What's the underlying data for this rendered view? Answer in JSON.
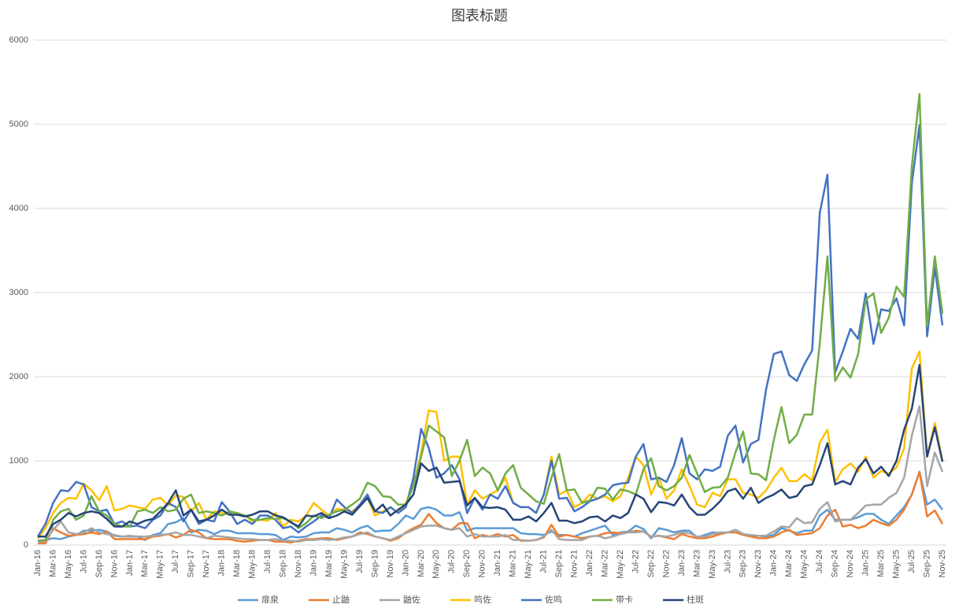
{
  "chart_data": {
    "type": "line",
    "title": "图表标题",
    "categories": [
      "Jan-16",
      null,
      "Mar-16",
      null,
      "May-16",
      null,
      "Jul-16",
      null,
      "Sep-16",
      null,
      "Nov-16",
      null,
      "Jan-17",
      null,
      "Mar-17",
      null,
      "May-17",
      null,
      "Jul-17",
      null,
      "Sep-17",
      null,
      "Nov-17",
      null,
      "Jan-18",
      null,
      "Mar-18",
      null,
      "May-18",
      null,
      "Jul-18",
      null,
      "Sep-18",
      null,
      "Nov-18",
      null,
      "Jan-19",
      null,
      "Mar-19",
      null,
      "May-19",
      null,
      "Jul-19",
      null,
      "Sep-19",
      null,
      "Nov-19",
      null,
      "Jan-20",
      null,
      "Mar-20",
      null,
      "May-20",
      null,
      "Jul-20",
      null,
      "Sep-20",
      null,
      "Nov-20",
      null,
      "Jan-21",
      null,
      "Mar-21",
      null,
      "May-21",
      null,
      "Jul-21",
      null,
      "Sep-21",
      null,
      "Nov-21",
      null,
      "Jan-22",
      null,
      "Mar-22",
      null,
      "May-22",
      null,
      "Jul-22",
      null,
      "Sep-22",
      null,
      "Nov-22",
      null,
      "Jan-23",
      null,
      "Mar-23",
      null,
      "May-23",
      null,
      "Jul-23",
      null,
      "Sep-23",
      null,
      "Nov-23",
      null,
      "Jan-24",
      null,
      "Mar-24",
      null,
      "May-24",
      null,
      "Jul-24",
      null,
      "Sep-24",
      null,
      "Nov-24",
      null,
      "Jan-25",
      null,
      "Mar-25",
      null,
      "May-25",
      null,
      "Jul-25",
      null,
      "Sep-25",
      null,
      "Nov-25"
    ],
    "series": [
      {
        "name": "扉泉",
        "color": "#5b9bd5",
        "values": [
          50,
          60,
          80,
          70,
          100,
          120,
          170,
          170,
          180,
          160,
          110,
          100,
          100,
          100,
          60,
          120,
          140,
          250,
          270,
          320,
          150,
          180,
          170,
          130,
          170,
          170,
          140,
          140,
          140,
          130,
          130,
          120,
          60,
          100,
          90,
          100,
          140,
          150,
          150,
          200,
          180,
          150,
          200,
          230,
          160,
          170,
          170,
          250,
          350,
          310,
          430,
          450,
          420,
          350,
          350,
          390,
          170,
          200,
          200,
          200,
          200,
          200,
          200,
          140,
          130,
          130,
          120,
          160,
          120,
          120,
          100,
          140,
          170,
          200,
          230,
          120,
          150,
          160,
          230,
          190,
          80,
          200,
          180,
          150,
          170,
          170,
          90,
          120,
          150,
          140,
          150,
          180,
          130,
          110,
          110,
          100,
          120,
          200,
          170,
          140,
          170,
          170,
          350,
          420,
          300,
          300,
          300,
          330,
          370,
          370,
          300,
          250,
          350,
          450,
          600,
          870,
          480,
          540,
          420
        ]
      },
      {
        "name": "止鼬",
        "color": "#ed7d31",
        "values": [
          20,
          20,
          200,
          150,
          110,
          120,
          130,
          150,
          130,
          160,
          70,
          70,
          70,
          70,
          70,
          100,
          110,
          130,
          90,
          120,
          180,
          150,
          80,
          70,
          70,
          70,
          50,
          40,
          50,
          60,
          60,
          40,
          40,
          30,
          50,
          70,
          70,
          80,
          80,
          60,
          80,
          100,
          150,
          130,
          100,
          80,
          50,
          80,
          150,
          200,
          240,
          370,
          260,
          200,
          180,
          260,
          260,
          80,
          120,
          100,
          130,
          100,
          120,
          50,
          50,
          60,
          90,
          240,
          100,
          120,
          100,
          80,
          100,
          110,
          140,
          150,
          140,
          150,
          170,
          160,
          100,
          110,
          90,
          70,
          130,
          100,
          80,
          80,
          100,
          130,
          150,
          150,
          120,
          100,
          80,
          80,
          100,
          150,
          180,
          120,
          130,
          140,
          200,
          350,
          420,
          220,
          240,
          200,
          230,
          300,
          260,
          230,
          300,
          420,
          600,
          870,
          340,
          410,
          250
        ]
      },
      {
        "name": "鼬佐",
        "color": "#a5a5a5",
        "values": [
          30,
          50,
          180,
          280,
          150,
          130,
          150,
          200,
          150,
          130,
          120,
          100,
          110,
          100,
          100,
          110,
          120,
          130,
          150,
          120,
          120,
          100,
          80,
          110,
          100,
          90,
          80,
          70,
          70,
          60,
          60,
          70,
          50,
          50,
          40,
          60,
          60,
          70,
          60,
          70,
          90,
          100,
          130,
          150,
          100,
          80,
          60,
          100,
          140,
          180,
          220,
          230,
          230,
          200,
          180,
          200,
          100,
          130,
          100,
          100,
          100,
          120,
          60,
          60,
          50,
          60,
          100,
          180,
          70,
          60,
          60,
          60,
          100,
          110,
          80,
          100,
          130,
          150,
          150,
          160,
          100,
          110,
          100,
          120,
          150,
          140,
          100,
          100,
          130,
          150,
          150,
          180,
          130,
          120,
          110,
          110,
          160,
          220,
          210,
          320,
          260,
          270,
          430,
          510,
          280,
          300,
          300,
          380,
          470,
          480,
          480,
          560,
          620,
          800,
          1300,
          1650,
          700,
          1100,
          870
        ]
      },
      {
        "name": "鸣佐",
        "color": "#ffc000",
        "values": [
          80,
          200,
          380,
          500,
          560,
          550,
          730,
          650,
          530,
          700,
          410,
          430,
          470,
          450,
          430,
          540,
          560,
          470,
          590,
          570,
          400,
          500,
          300,
          400,
          380,
          360,
          380,
          350,
          280,
          300,
          290,
          380,
          220,
          300,
          280,
          350,
          500,
          420,
          350,
          430,
          420,
          400,
          470,
          560,
          350,
          400,
          450,
          380,
          500,
          700,
          1100,
          1600,
          1580,
          1000,
          1050,
          1050,
          480,
          650,
          550,
          600,
          650,
          800,
          500,
          450,
          450,
          380,
          600,
          1050,
          600,
          650,
          450,
          500,
          600,
          550,
          580,
          520,
          580,
          800,
          1050,
          950,
          600,
          800,
          550,
          650,
          900,
          700,
          480,
          450,
          620,
          580,
          780,
          780,
          620,
          600,
          560,
          650,
          800,
          920,
          760,
          760,
          840,
          770,
          1220,
          1370,
          750,
          900,
          970,
          870,
          1050,
          800,
          880,
          850,
          920,
          1150,
          2100,
          2300,
          1050,
          1450,
          1000
        ]
      },
      {
        "name": "佐鸣",
        "color": "#4472c4",
        "values": [
          100,
          250,
          500,
          650,
          640,
          750,
          720,
          450,
          400,
          420,
          250,
          280,
          220,
          230,
          200,
          300,
          350,
          500,
          450,
          280,
          420,
          250,
          300,
          280,
          510,
          400,
          250,
          300,
          250,
          350,
          350,
          300,
          200,
          220,
          150,
          220,
          280,
          350,
          320,
          540,
          450,
          380,
          480,
          600,
          400,
          380,
          450,
          380,
          450,
          800,
          1380,
          1150,
          800,
          850,
          950,
          780,
          380,
          560,
          420,
          600,
          550,
          700,
          500,
          450,
          450,
          380,
          600,
          1000,
          550,
          560,
          400,
          450,
          520,
          550,
          600,
          710,
          730,
          740,
          1050,
          1200,
          780,
          800,
          750,
          950,
          1270,
          850,
          780,
          900,
          880,
          930,
          1300,
          1420,
          980,
          1200,
          1250,
          1850,
          2270,
          2300,
          2020,
          1950,
          2150,
          2310,
          3950,
          4400,
          2050,
          2300,
          2570,
          2450,
          2990,
          2390,
          2800,
          2780,
          2930,
          2610,
          4300,
          4990,
          2480,
          3300,
          2610
        ]
      },
      {
        "name": "带卡",
        "color": "#70ad47",
        "values": [
          50,
          60,
          300,
          400,
          430,
          300,
          350,
          580,
          400,
          350,
          250,
          220,
          220,
          400,
          420,
          380,
          450,
          400,
          420,
          550,
          600,
          380,
          400,
          380,
          350,
          400,
          380,
          350,
          300,
          300,
          320,
          310,
          320,
          280,
          200,
          260,
          350,
          320,
          360,
          400,
          420,
          480,
          550,
          740,
          700,
          580,
          570,
          480,
          480,
          700,
          1050,
          1420,
          1350,
          1280,
          820,
          1000,
          1250,
          820,
          920,
          850,
          650,
          850,
          950,
          680,
          600,
          520,
          490,
          800,
          1080,
          650,
          660,
          500,
          530,
          680,
          670,
          540,
          660,
          640,
          600,
          900,
          1030,
          700,
          650,
          700,
          800,
          1070,
          850,
          630,
          680,
          690,
          800,
          1100,
          1350,
          850,
          840,
          770,
          1250,
          1640,
          1210,
          1310,
          1550,
          1550,
          2400,
          3430,
          1950,
          2110,
          1990,
          2270,
          2920,
          2990,
          2520,
          2700,
          3070,
          2950,
          4500,
          5360,
          2600,
          3430,
          2750
        ]
      },
      {
        "name": "柱斑",
        "color": "#264478",
        "values": [
          100,
          100,
          250,
          300,
          380,
          340,
          380,
          400,
          380,
          310,
          220,
          220,
          280,
          250,
          290,
          310,
          400,
          500,
          650,
          350,
          420,
          280,
          300,
          350,
          420,
          360,
          360,
          340,
          360,
          400,
          400,
          350,
          330,
          270,
          220,
          350,
          340,
          380,
          320,
          350,
          400,
          360,
          460,
          560,
          400,
          480,
          350,
          420,
          480,
          600,
          970,
          880,
          920,
          740,
          750,
          760,
          470,
          560,
          450,
          440,
          450,
          420,
          300,
          300,
          340,
          280,
          380,
          500,
          290,
          290,
          260,
          280,
          330,
          340,
          280,
          350,
          320,
          380,
          600,
          550,
          390,
          510,
          500,
          470,
          600,
          450,
          360,
          360,
          430,
          520,
          640,
          670,
          550,
          680,
          500,
          560,
          600,
          660,
          560,
          580,
          700,
          720,
          950,
          1210,
          720,
          760,
          720,
          920,
          1020,
          850,
          930,
          820,
          1000,
          1370,
          1620,
          2140,
          1050,
          1400,
          990
        ]
      }
    ],
    "ylim": [
      0,
      6000
    ],
    "yticks": [
      0,
      1000,
      2000,
      3000,
      4000,
      5000,
      6000
    ],
    "grid": true,
    "legend": "bottom"
  }
}
